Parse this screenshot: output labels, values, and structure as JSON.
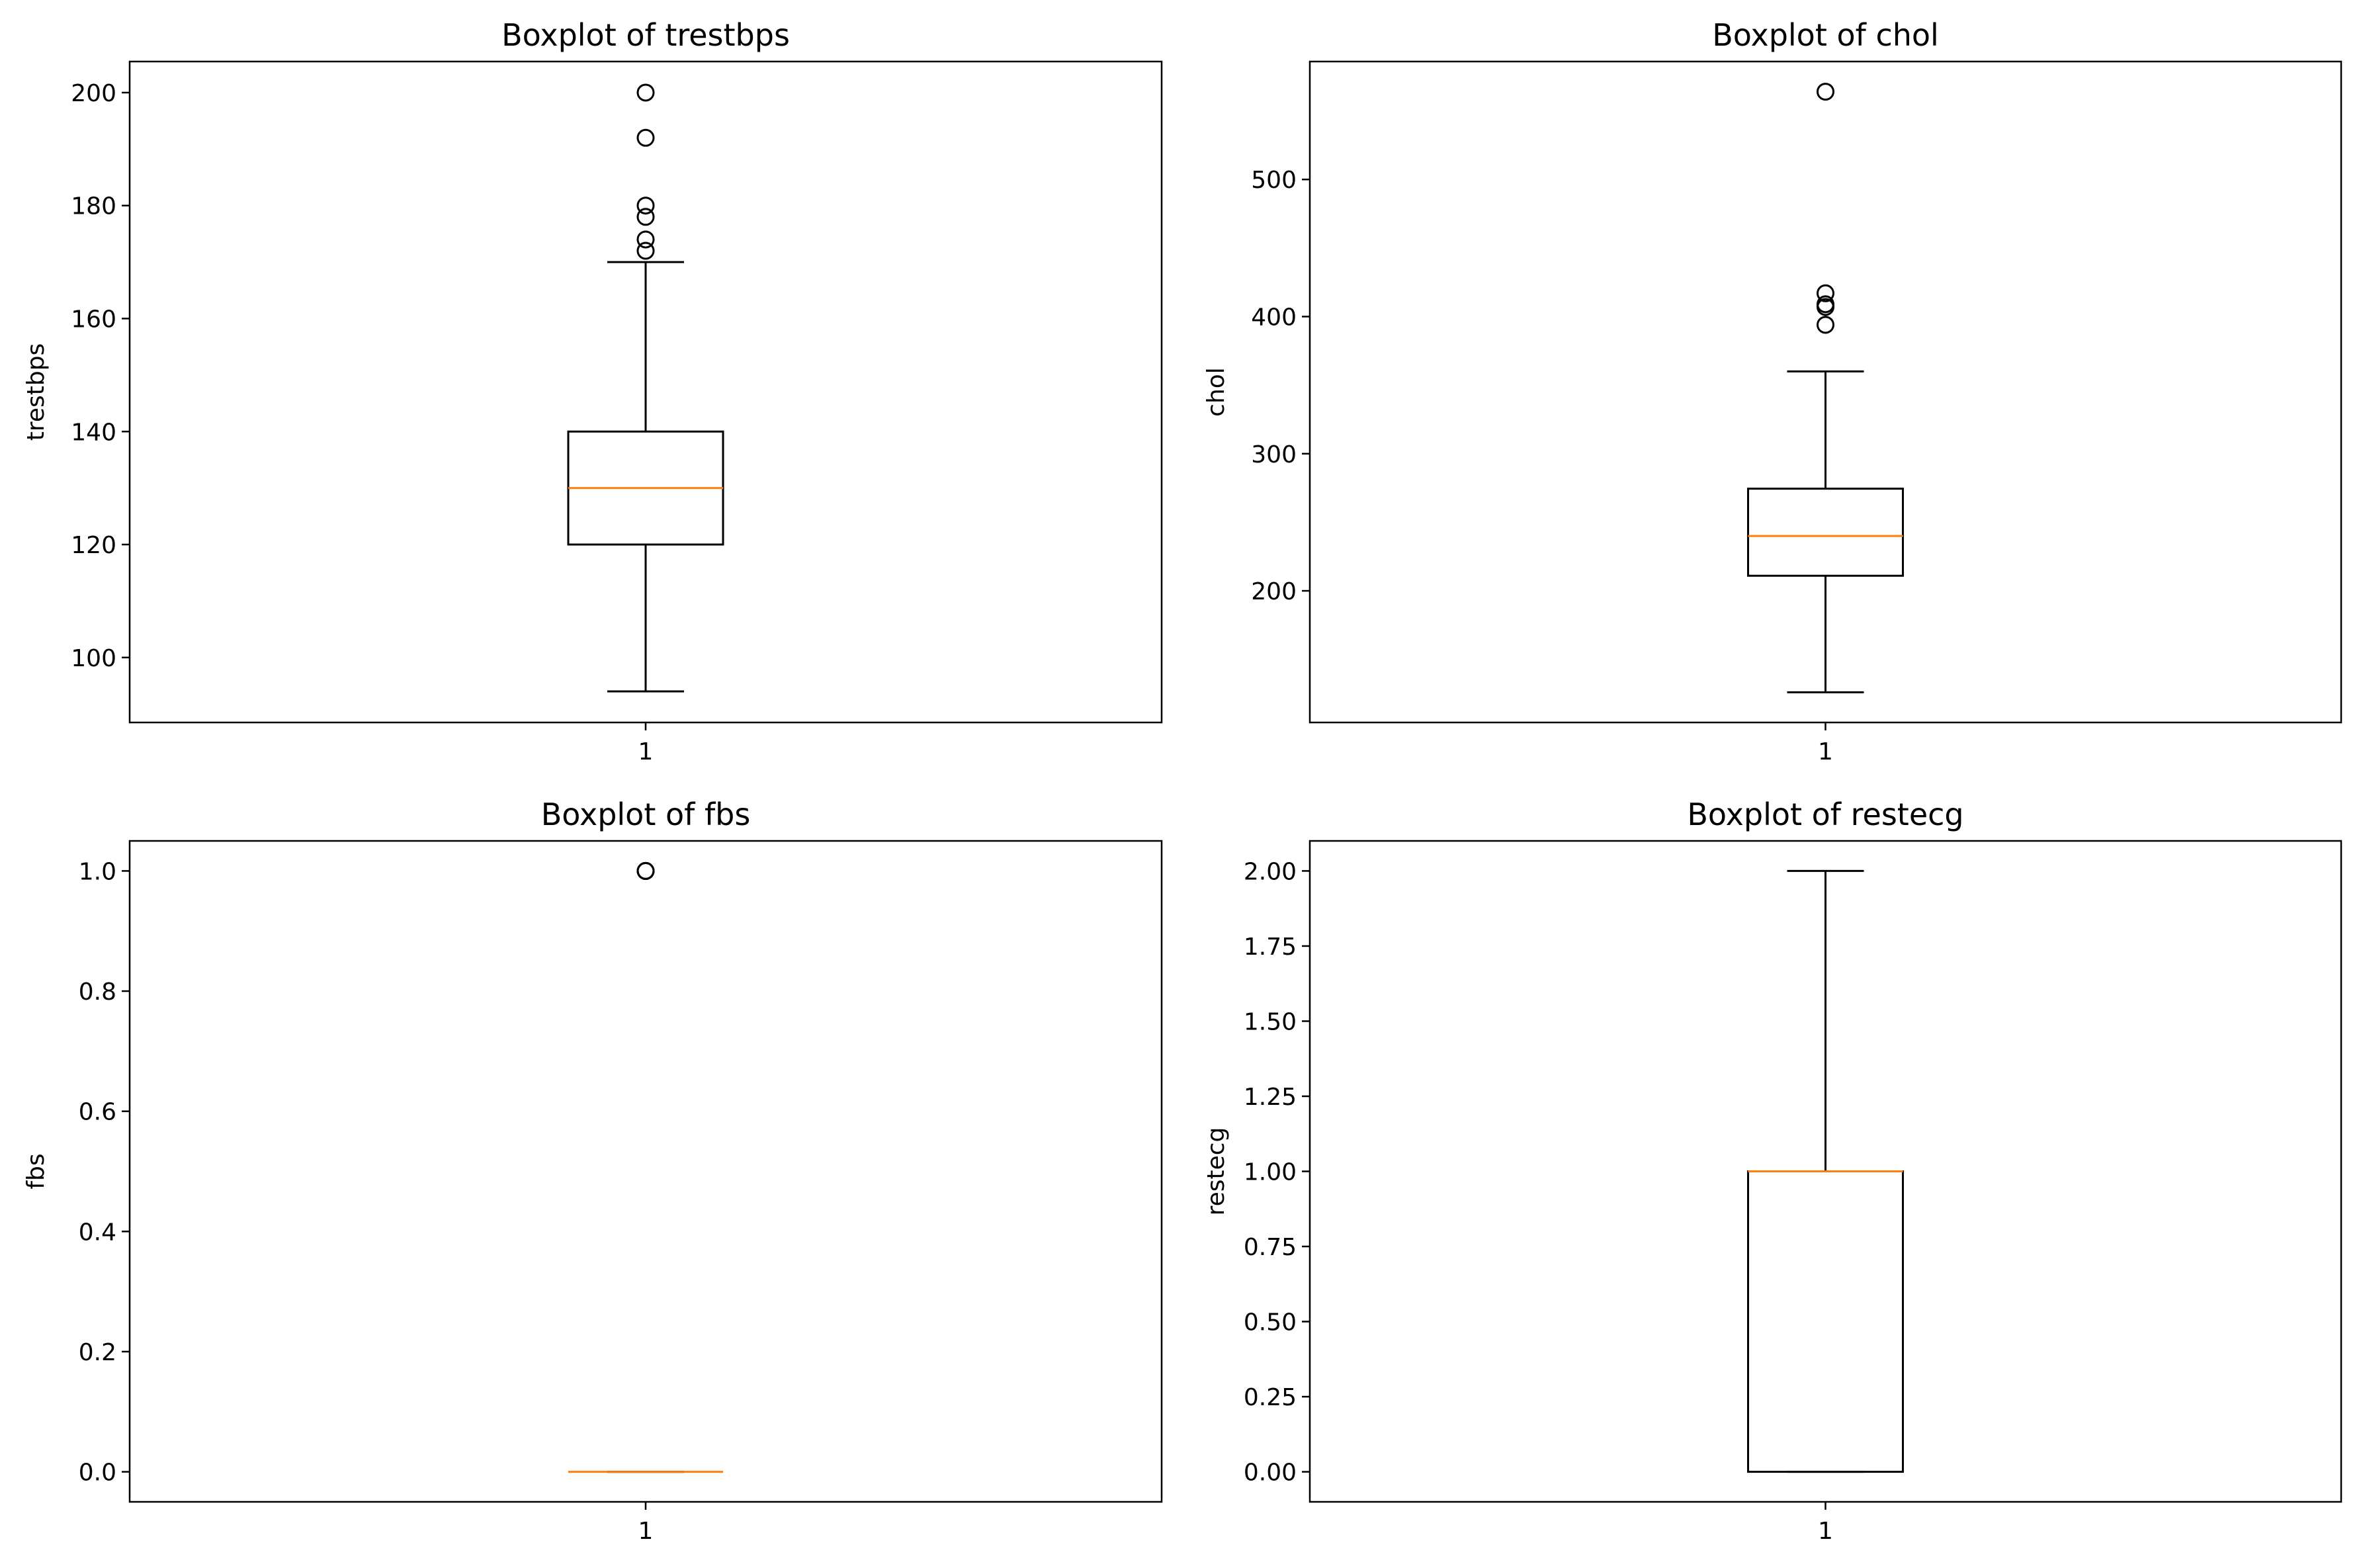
{
  "chart_data": [
    {
      "type": "boxplot",
      "title": "Boxplot of trestbps",
      "xlabel": "",
      "ylabel": "trestbps",
      "categories": [
        "1"
      ],
      "ylim": [
        88.5,
        205.5
      ],
      "yticks": [
        {
          "value": 100,
          "label": "100"
        },
        {
          "value": 120,
          "label": "120"
        },
        {
          "value": 140,
          "label": "140"
        },
        {
          "value": 160,
          "label": "160"
        },
        {
          "value": 180,
          "label": "180"
        },
        {
          "value": 200,
          "label": "200"
        }
      ],
      "box": {
        "whisker_low": 94,
        "q1": 120,
        "median": 130,
        "q3": 140,
        "whisker_high": 170
      },
      "outliers": [
        172,
        174,
        178,
        180,
        192,
        200
      ]
    },
    {
      "type": "boxplot",
      "title": "Boxplot of chol",
      "xlabel": "",
      "ylabel": "chol",
      "categories": [
        "1"
      ],
      "ylim": [
        104,
        586
      ],
      "yticks": [
        {
          "value": 200,
          "label": "200"
        },
        {
          "value": 300,
          "label": "300"
        },
        {
          "value": 400,
          "label": "400"
        },
        {
          "value": 500,
          "label": "500"
        }
      ],
      "box": {
        "whisker_low": 126,
        "q1": 211,
        "median": 240,
        "q3": 274.5,
        "whisker_high": 360
      },
      "outliers": [
        394,
        407,
        409,
        417,
        564
      ]
    },
    {
      "type": "boxplot",
      "title": "Boxplot of fbs",
      "xlabel": "",
      "ylabel": "fbs",
      "categories": [
        "1"
      ],
      "ylim": [
        -0.05,
        1.05
      ],
      "yticks": [
        {
          "value": 0.0,
          "label": "0.0"
        },
        {
          "value": 0.2,
          "label": "0.2"
        },
        {
          "value": 0.4,
          "label": "0.4"
        },
        {
          "value": 0.6,
          "label": "0.6"
        },
        {
          "value": 0.8,
          "label": "0.8"
        },
        {
          "value": 1.0,
          "label": "1.0"
        }
      ],
      "box": {
        "whisker_low": 0,
        "q1": 0,
        "median": 0,
        "q3": 0,
        "whisker_high": 0
      },
      "outliers": [
        1,
        1,
        1
      ]
    },
    {
      "type": "boxplot",
      "title": "Boxplot of restecg",
      "xlabel": "",
      "ylabel": "restecg",
      "categories": [
        "1"
      ],
      "ylim": [
        -0.1,
        2.1
      ],
      "yticks": [
        {
          "value": 0.0,
          "label": "0.00"
        },
        {
          "value": 0.25,
          "label": "0.25"
        },
        {
          "value": 0.5,
          "label": "0.50"
        },
        {
          "value": 0.75,
          "label": "0.75"
        },
        {
          "value": 1.0,
          "label": "1.00"
        },
        {
          "value": 1.25,
          "label": "1.25"
        },
        {
          "value": 1.5,
          "label": "1.50"
        },
        {
          "value": 1.75,
          "label": "1.75"
        },
        {
          "value": 2.0,
          "label": "2.00"
        }
      ],
      "box": {
        "whisker_low": 0,
        "q1": 0,
        "median": 1,
        "q3": 1,
        "whisker_high": 2
      },
      "outliers": []
    }
  ],
  "colors": {
    "box": "#000000",
    "median": "#ff7f0e",
    "outlier_edge": "#000000",
    "background": "#ffffff"
  }
}
